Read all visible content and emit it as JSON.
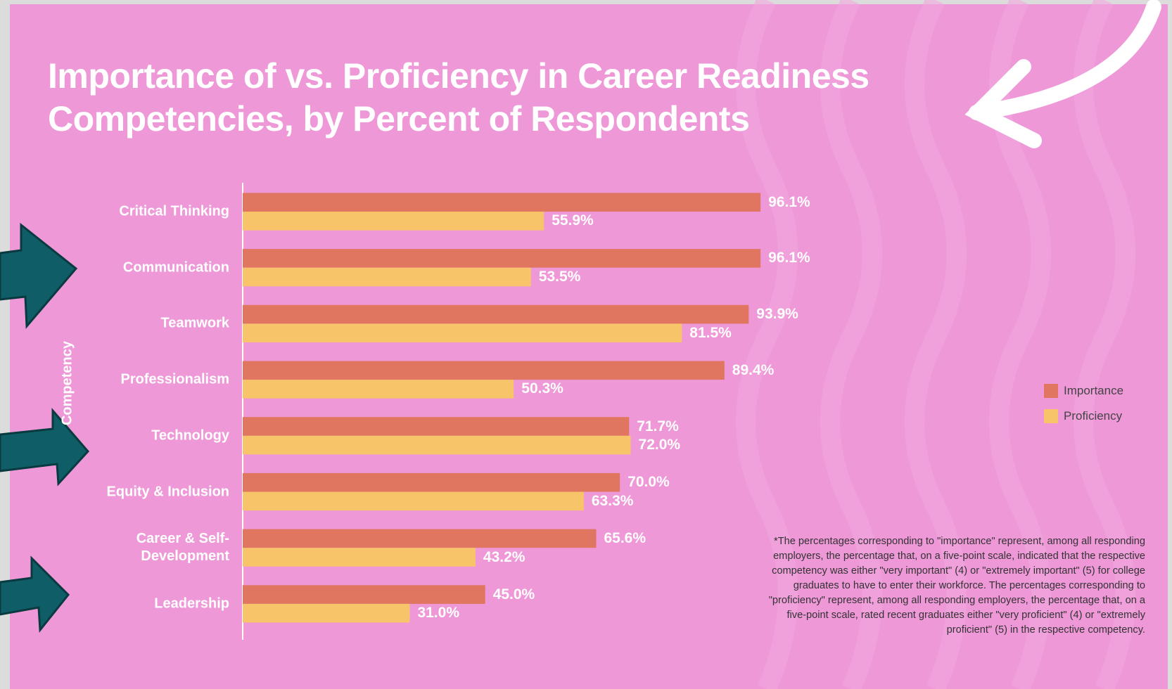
{
  "chart_data": {
    "type": "bar",
    "orientation": "horizontal",
    "title": "Importance of vs. Proficiency in Career Readiness Competencies, by Percent of Respondents",
    "y_label": "Competency",
    "categories": [
      "Critical Thinking",
      "Communication",
      "Teamwork",
      "Professionalism",
      "Technology",
      "Equity & Inclusion",
      "Career & Self-Development",
      "Leadership"
    ],
    "series": [
      {
        "name": "Importance",
        "color": "#e07560",
        "values": [
          96.1,
          96.1,
          93.9,
          89.4,
          71.7,
          70.0,
          65.6,
          45.0
        ],
        "value_labels": [
          "96.1%",
          "96.1%",
          "93.9%",
          "89.4%",
          "71.7%",
          "70.0%",
          "65.6%",
          "45.0%"
        ]
      },
      {
        "name": "Proficiency",
        "color": "#f7c46a",
        "values": [
          55.9,
          53.5,
          81.5,
          50.3,
          72.0,
          63.3,
          43.2,
          31.0
        ],
        "value_labels": [
          "55.9%",
          "53.5%",
          "81.5%",
          "50.3%",
          "72.0%",
          "63.3%",
          "43.2%",
          "31.0%"
        ]
      }
    ],
    "xlim": [
      0,
      100
    ],
    "legend": "right",
    "note": "*The percentages corresponding to \"importance\" represent, among all responding employers, the percentage that, on a five-point scale, indicated that the respective competency was either \"very important\" (4) or \"extremely important\" (5) for college graduates to have to enter their workforce. The percentages corresponding to \"proficiency\" represent, among all responding employers, the percentage that, on a five-point scale, rated recent graduates either \"very proficient\" (4) or \"extremely proficient\" (5) in the respective competency."
  }
}
